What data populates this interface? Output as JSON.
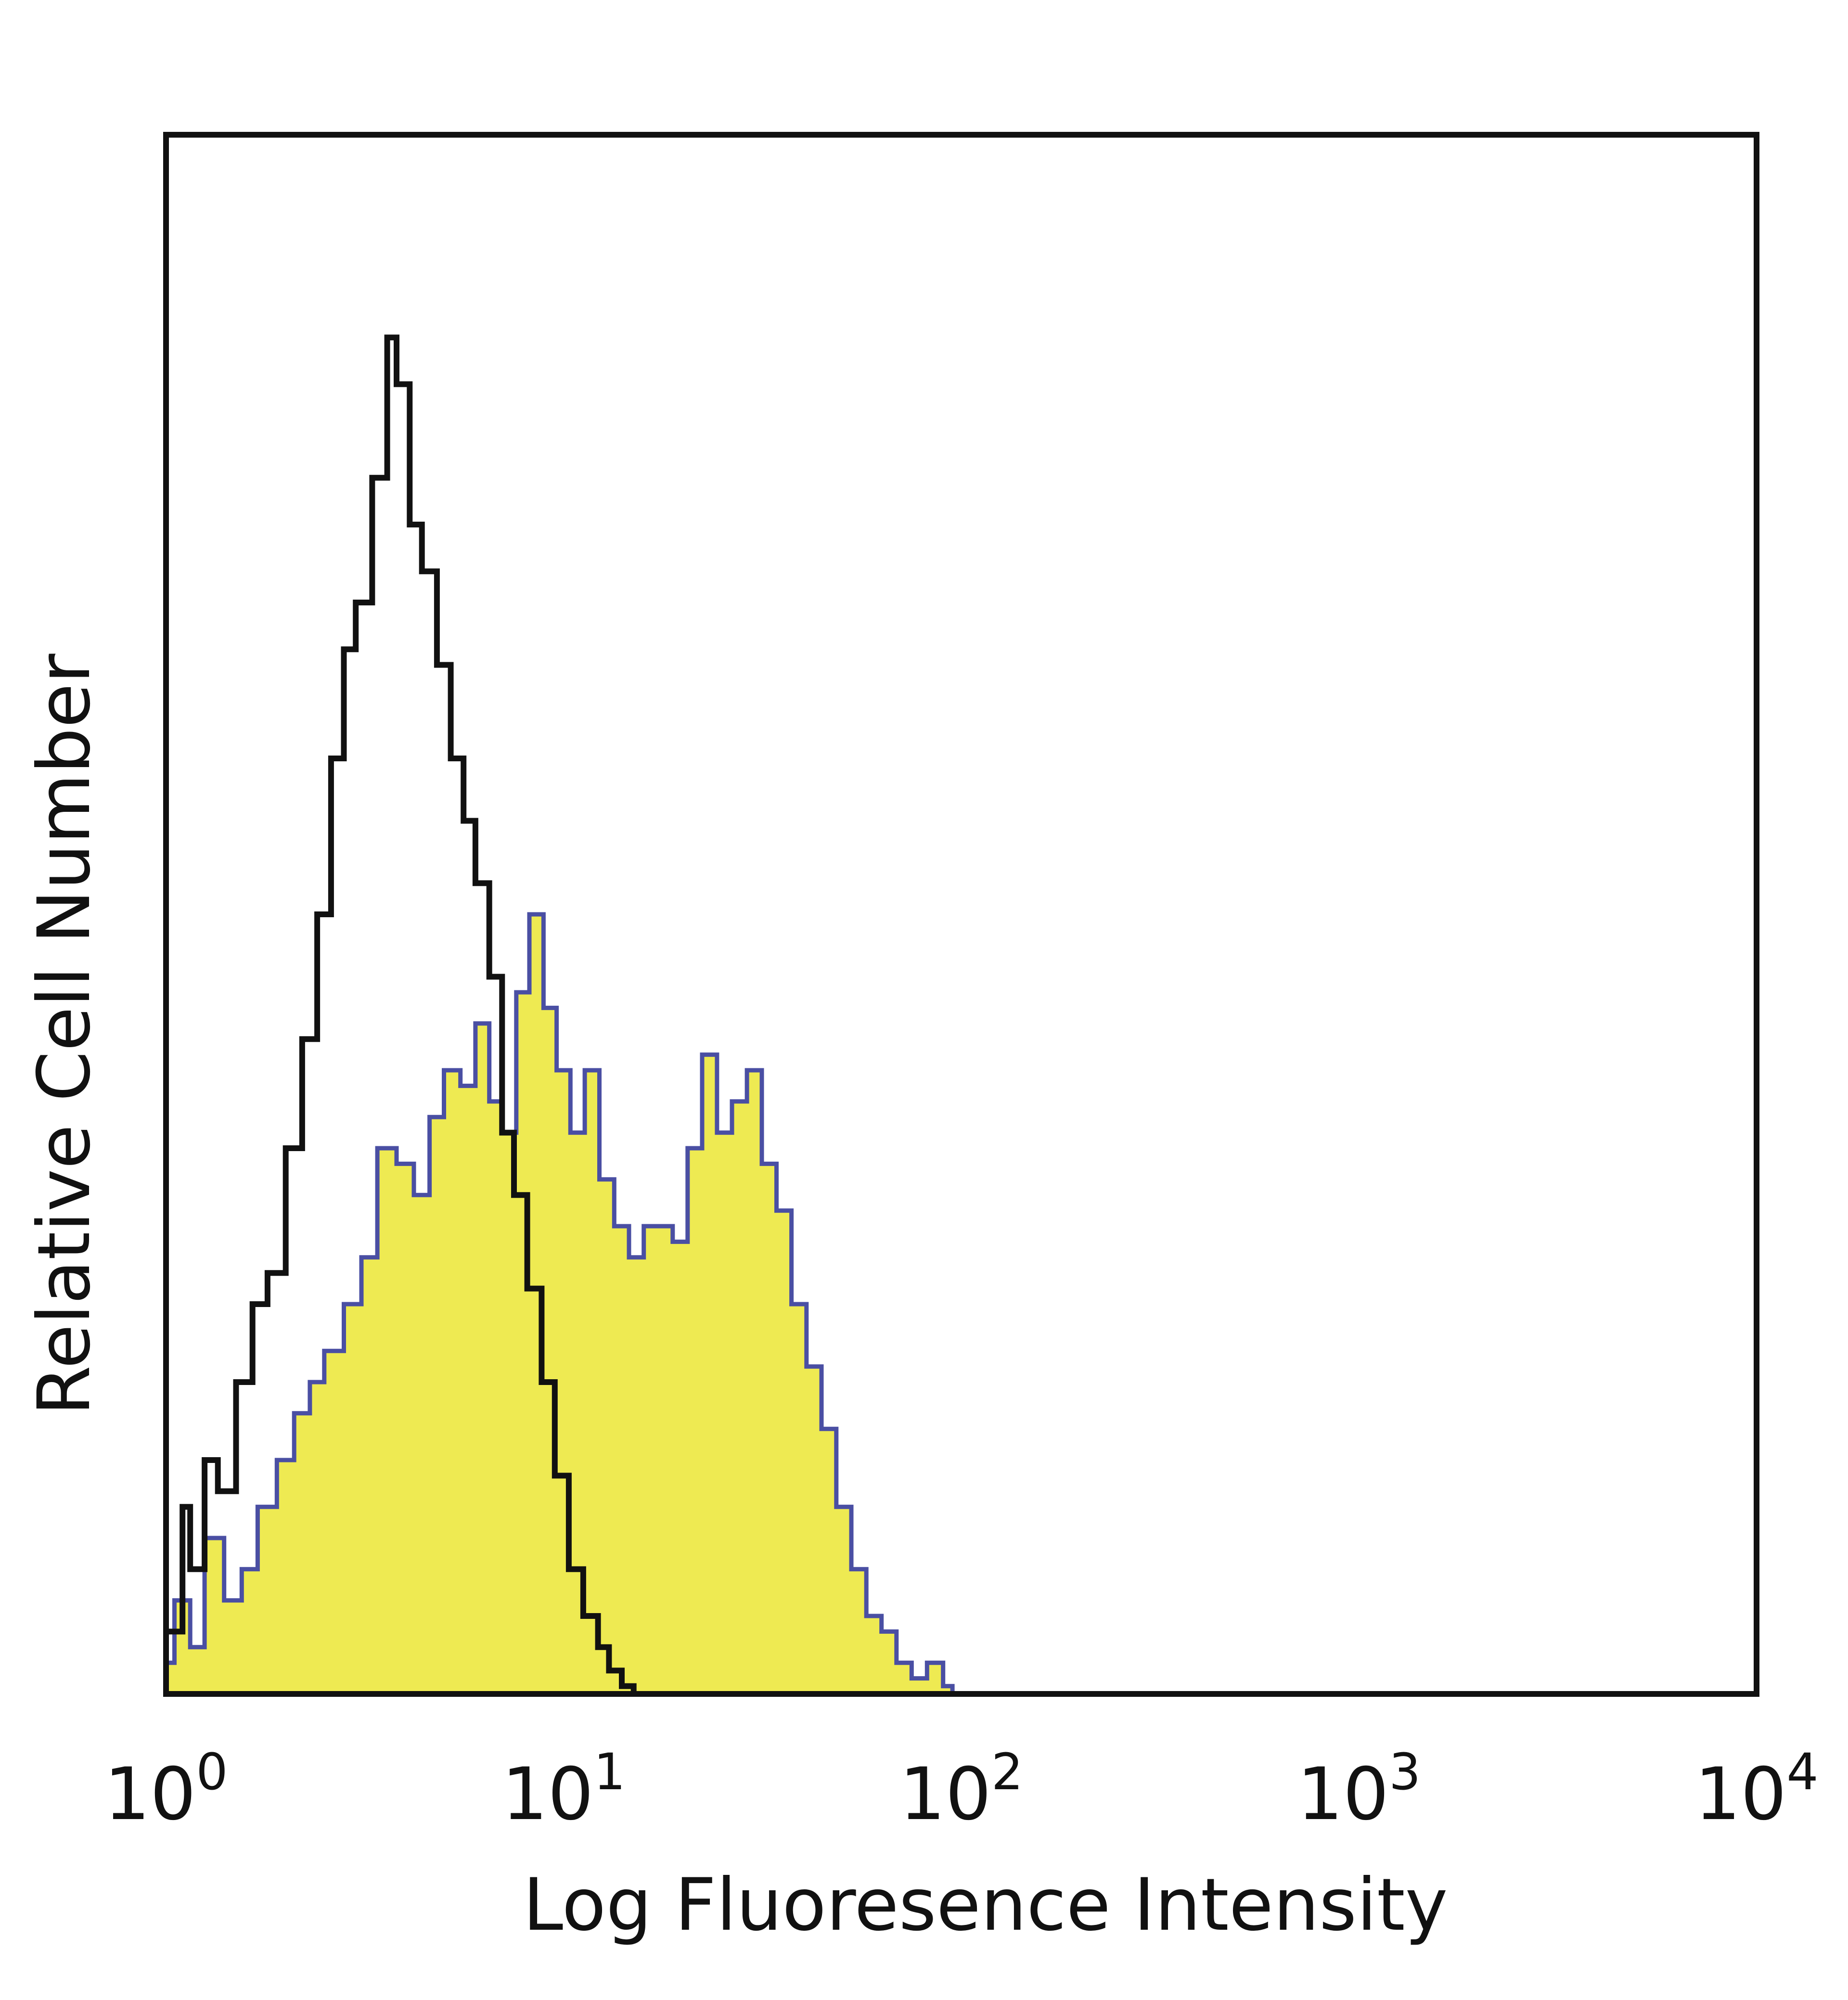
{
  "chart_data": {
    "type": "area",
    "title": "",
    "xlabel": "Log Fluoresence Intensity",
    "ylabel": "Relative Cell Number",
    "x_scale": "log",
    "xlim": [
      1,
      10000
    ],
    "ylim": [
      0,
      1
    ],
    "grid": false,
    "legend": "none",
    "x_ticks": [
      {
        "base": "10",
        "exp": "0",
        "value": 1
      },
      {
        "base": "10",
        "exp": "1",
        "value": 10
      },
      {
        "base": "10",
        "exp": "2",
        "value": 100
      },
      {
        "base": "10",
        "exp": "3",
        "value": 1000
      },
      {
        "base": "10",
        "exp": "4",
        "value": 10000
      }
    ],
    "series": [
      {
        "style": "outline",
        "color": "#111111",
        "x": [
          1.0,
          1.1,
          1.15,
          1.25,
          1.35,
          1.5,
          1.65,
          1.8,
          2.0,
          2.2,
          2.4,
          2.6,
          2.8,
          3.0,
          3.3,
          3.6,
          3.8,
          4.1,
          4.4,
          4.8,
          5.2,
          5.6,
          6.0,
          6.5,
          7.0,
          7.5,
          8.1,
          8.8,
          9.5,
          10.3,
          11.2,
          12.2,
          13.0,
          14.0,
          15.0
        ],
        "y": [
          0.04,
          0.12,
          0.08,
          0.15,
          0.13,
          0.2,
          0.25,
          0.27,
          0.35,
          0.42,
          0.5,
          0.6,
          0.67,
          0.7,
          0.78,
          0.87,
          0.84,
          0.75,
          0.72,
          0.66,
          0.6,
          0.56,
          0.52,
          0.46,
          0.36,
          0.32,
          0.26,
          0.2,
          0.14,
          0.08,
          0.05,
          0.03,
          0.015,
          0.005,
          0.0
        ]
      },
      {
        "style": "filled",
        "fill": "#eeea52",
        "color": "#4a4fa3",
        "x": [
          1.0,
          1.05,
          1.15,
          1.25,
          1.4,
          1.55,
          1.7,
          1.9,
          2.1,
          2.3,
          2.5,
          2.8,
          3.1,
          3.4,
          3.8,
          4.2,
          4.6,
          5.0,
          5.5,
          6.0,
          6.5,
          7.0,
          7.6,
          8.2,
          8.9,
          9.6,
          10.4,
          11.3,
          12.3,
          13.4,
          14.6,
          15.9,
          17.3,
          18.8,
          20.5,
          22.3,
          24.3,
          26.5,
          28.9,
          31.5,
          34.3,
          37.4,
          40.8,
          44.5,
          48.5,
          52.9,
          57.7,
          63.0,
          68.7,
          75.0,
          82.0,
          90.0,
          95.0
        ],
        "y": [
          0.02,
          0.06,
          0.03,
          0.1,
          0.06,
          0.08,
          0.12,
          0.15,
          0.18,
          0.2,
          0.22,
          0.25,
          0.28,
          0.35,
          0.34,
          0.32,
          0.37,
          0.4,
          0.39,
          0.43,
          0.38,
          0.36,
          0.45,
          0.5,
          0.44,
          0.4,
          0.36,
          0.4,
          0.33,
          0.3,
          0.28,
          0.3,
          0.3,
          0.29,
          0.35,
          0.41,
          0.36,
          0.38,
          0.4,
          0.34,
          0.31,
          0.25,
          0.21,
          0.17,
          0.12,
          0.08,
          0.05,
          0.04,
          0.02,
          0.01,
          0.02,
          0.005,
          0.0
        ]
      }
    ]
  }
}
